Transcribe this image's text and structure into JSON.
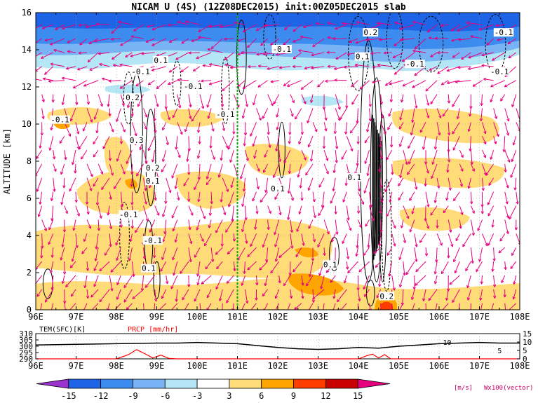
{
  "title": "NICAM  U  (4S)  (12Z08DEC2015)  init:00Z05DEC2015  slab",
  "chart_data": [
    {
      "type": "heatmap",
      "name": "u-wind cross-section",
      "ylabel": "ALTITUDE  [km]",
      "xlim": [
        96,
        108
      ],
      "ylim": [
        0,
        16
      ],
      "x_ticks": [
        "96E",
        "97E",
        "98E",
        "99E",
        "100E",
        "101E",
        "102E",
        "103E",
        "104E",
        "105E",
        "106E",
        "107E",
        "108E"
      ],
      "y_ticks": [
        "0",
        "2",
        "4",
        "6",
        "8",
        "10",
        "12",
        "14",
        "16"
      ],
      "grid": true,
      "marker_line_x": 101.0,
      "contour_labels": [
        {
          "text": "-0.1",
          "x": 96.6,
          "y": 10.2
        },
        {
          "text": "-0.1",
          "x": 98.6,
          "y": 12.8
        },
        {
          "text": "0.1",
          "x": 99.1,
          "y": 13.4
        },
        {
          "text": "0.2",
          "x": 98.4,
          "y": 11.4
        },
        {
          "text": "-0.1",
          "x": 99.9,
          "y": 12.0
        },
        {
          "text": "-0.1",
          "x": 100.7,
          "y": 10.5
        },
        {
          "text": "0.3",
          "x": 98.5,
          "y": 9.1
        },
        {
          "text": "0.2",
          "x": 98.9,
          "y": 7.6
        },
        {
          "text": "0.1",
          "x": 98.9,
          "y": 6.9
        },
        {
          "text": "-0.1",
          "x": 98.3,
          "y": 5.1
        },
        {
          "text": "-0.1",
          "x": 98.9,
          "y": 3.7
        },
        {
          "text": "0.1",
          "x": 98.8,
          "y": 2.2
        },
        {
          "text": "-0.1",
          "x": 102.1,
          "y": 14.0
        },
        {
          "text": "0.2",
          "x": 104.3,
          "y": 14.9
        },
        {
          "text": "0.1",
          "x": 104.1,
          "y": 13.6
        },
        {
          "text": "-0.1",
          "x": 105.4,
          "y": 13.2
        },
        {
          "text": "-0.1",
          "x": 107.5,
          "y": 12.8
        },
        {
          "text": "-0.1",
          "x": 107.6,
          "y": 14.9
        },
        {
          "text": "0.1",
          "x": 102.0,
          "y": 6.5
        },
        {
          "text": "0.1",
          "x": 103.9,
          "y": 7.1
        },
        {
          "text": "0.1",
          "x": 103.3,
          "y": 2.4
        },
        {
          "text": "0.2",
          "x": 104.7,
          "y": 0.7
        }
      ]
    },
    {
      "type": "line",
      "name": "surface temperature and precipitation",
      "series": [
        {
          "name": "TEM(SFC)[K]",
          "color": "#000000",
          "axis": "left",
          "ylim": [
            290,
            310
          ],
          "x": [
            96,
            97,
            98,
            99,
            99.5,
            100,
            100.5,
            101,
            101.5,
            102,
            102.5,
            103,
            103.5,
            104,
            104.5,
            105,
            105.5,
            106,
            106.5,
            107,
            107.5,
            108
          ],
          "values": [
            301,
            301.5,
            302,
            302.5,
            302.5,
            303,
            302.5,
            302,
            300.5,
            299,
            298,
            297.5,
            298,
            299,
            298.5,
            300,
            301,
            302,
            302.5,
            303,
            302.5,
            302.5
          ]
        },
        {
          "name": "PRCP [mm/hr]",
          "color": "#ff0000",
          "axis": "right",
          "ylim": [
            0,
            15
          ],
          "x": [
            96,
            96.3,
            96.5,
            98,
            98.3,
            98.5,
            98.75,
            98.9,
            99.1,
            99.3,
            99.5,
            104,
            104.2,
            104.35,
            104.5,
            104.65,
            104.8,
            108
          ],
          "values": [
            0,
            0,
            0,
            0,
            2.5,
            5.5,
            2.5,
            0.5,
            2.2,
            0.3,
            0,
            0,
            1.8,
            2.8,
            0.5,
            2.5,
            0,
            0
          ]
        }
      ],
      "left_ticks": [
        "290",
        "295",
        "300",
        "305",
        "310"
      ],
      "right_ticks": [
        "0",
        "5",
        "10",
        "15"
      ],
      "x_ticks": [
        "96E",
        "97E",
        "98E",
        "99E",
        "100E",
        "101E",
        "102E",
        "103E",
        "104E",
        "105E",
        "106E",
        "107E",
        "108E"
      ],
      "inline_labels": [
        {
          "text": "10",
          "x": 106.2,
          "y_right": 10
        },
        {
          "text": "5",
          "x": 107.5,
          "y_right": 5
        }
      ]
    }
  ],
  "colorbar": {
    "labels": [
      "-15",
      "-12",
      "-9",
      "-6",
      "-3",
      "3",
      "6",
      "9",
      "12",
      "15"
    ],
    "colors": [
      "#9a32cd",
      "#1e64e6",
      "#3c8cf0",
      "#78b4f5",
      "#b4e6f5",
      "#ffffff",
      "#ffdc78",
      "#ffa500",
      "#ff3c00",
      "#c80000",
      "#e6007e"
    ],
    "unit": "[m/s]",
    "vector_note": "Wx100(vector)"
  },
  "style": {
    "vector_color": "#e6007e",
    "contour_color": "#000000",
    "marker_color": "#00aa00",
    "prcp_color": "#ff0000"
  }
}
